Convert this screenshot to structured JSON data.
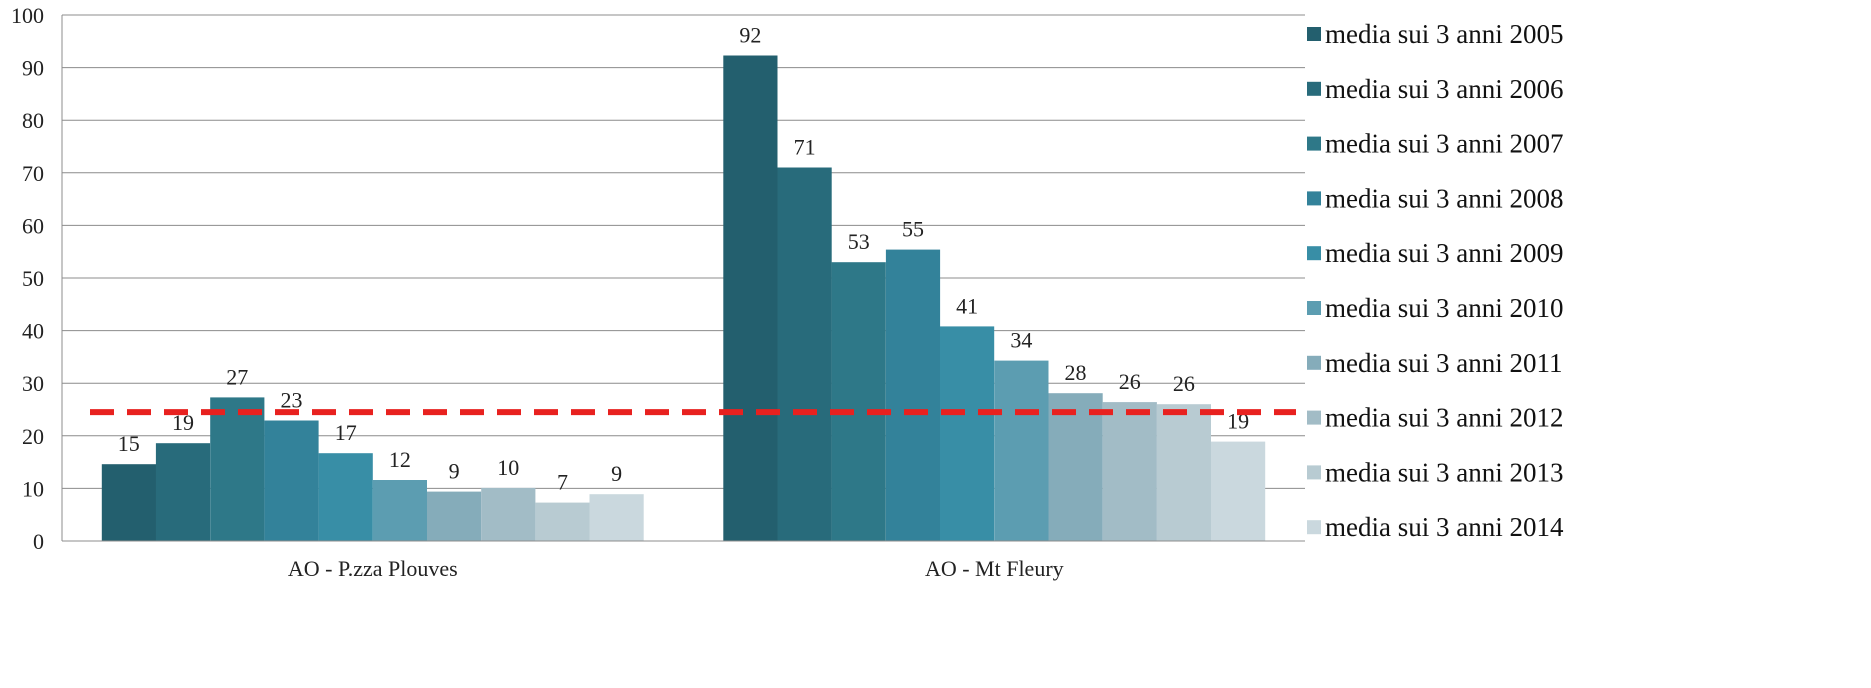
{
  "chart_data": {
    "type": "bar",
    "categories": [
      "AO - P.zza Plouves",
      "AO - Mt Fleury"
    ],
    "series": [
      {
        "name": "media sui 3 anni 2005",
        "color": "#235F6E",
        "values": [
          15,
          92
        ]
      },
      {
        "name": "media sui 3 anni 2006",
        "color": "#286B7B",
        "values": [
          19,
          71
        ]
      },
      {
        "name": "media sui 3 anni 2007",
        "color": "#2E7888",
        "values": [
          27,
          53
        ]
      },
      {
        "name": "media sui 3 anni 2008",
        "color": "#33829A",
        "values": [
          23,
          55
        ]
      },
      {
        "name": "media sui 3 anni 2009",
        "color": "#388EA6",
        "values": [
          17,
          41
        ]
      },
      {
        "name": "media sui 3 anni 2010",
        "color": "#5C9DB1",
        "values": [
          12,
          34
        ]
      },
      {
        "name": "media sui 3 anni 2011",
        "color": "#85ACBA",
        "values": [
          9,
          28
        ]
      },
      {
        "name": "media sui 3 anni 2012",
        "color": "#A2BCC6",
        "values": [
          10,
          26
        ]
      },
      {
        "name": "media sui 3 anni 2013",
        "color": "#B8CBD2",
        "values": [
          7,
          26
        ]
      },
      {
        "name": "media sui 3 anni 2014",
        "color": "#CAD8DE",
        "values": [
          9,
          19
        ]
      }
    ],
    "actual_values": [
      [
        14.6,
        92.3
      ],
      [
        18.6,
        71.0
      ],
      [
        27.3,
        53.0
      ],
      [
        22.9,
        55.4
      ],
      [
        16.7,
        40.8
      ],
      [
        11.6,
        34.3
      ],
      [
        9.4,
        28.1
      ],
      [
        10.1,
        26.4
      ],
      [
        7.3,
        26.0
      ],
      [
        8.9,
        18.9
      ]
    ],
    "ylim": [
      0,
      100
    ],
    "yticks": [
      0,
      10,
      20,
      30,
      40,
      50,
      60,
      70,
      80,
      90,
      100
    ],
    "reference_line": {
      "value": 24.5,
      "color": "#E8211F",
      "style": "dashed"
    },
    "grid": true,
    "legend_position": "right",
    "title": "",
    "xlabel": "",
    "ylabel": ""
  }
}
